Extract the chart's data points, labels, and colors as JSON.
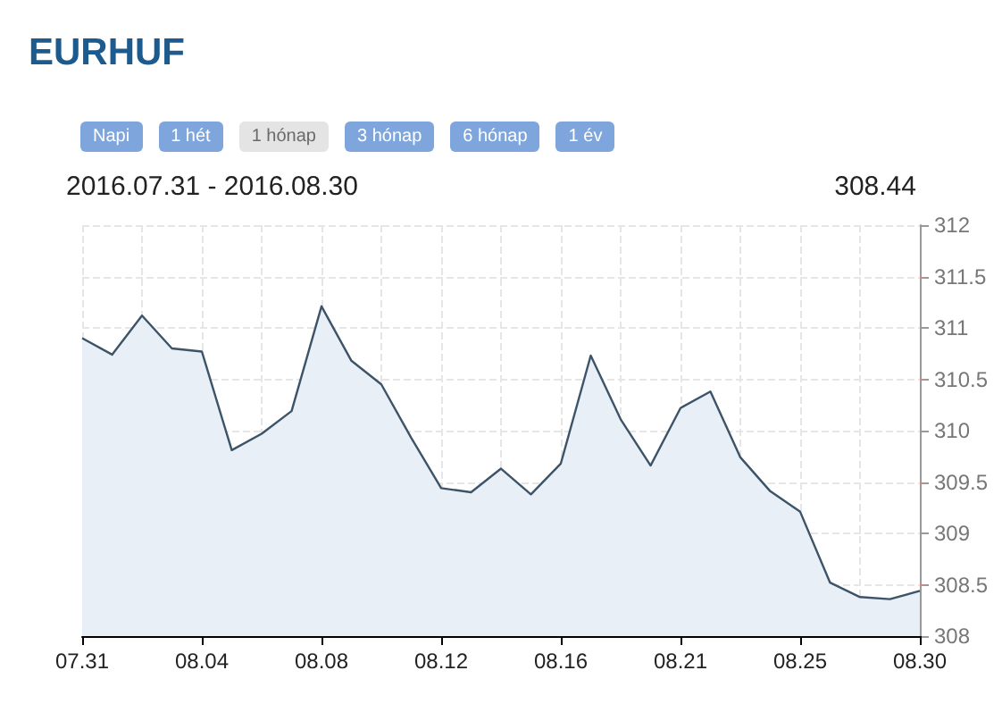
{
  "chart_data": {
    "type": "area",
    "title": "EURHUF",
    "subtitle": "2016.07.31 - 2016.08.30",
    "annotations": [
      "Napi",
      "1 hét",
      "1 hónap",
      "3 hónap",
      "6 hónap",
      "1 év",
      "308.44"
    ],
    "categories": [
      "07.31",
      null,
      null,
      null,
      "08.04",
      null,
      null,
      null,
      "08.08",
      null,
      null,
      null,
      "08.12",
      null,
      null,
      null,
      "08.16",
      null,
      null,
      null,
      "08.21",
      null,
      null,
      null,
      "08.25",
      null,
      null,
      null,
      "08.30"
    ],
    "series": [
      {
        "color": "#3d5468",
        "values": [
          310.9,
          310.74,
          311.12,
          310.8,
          310.77,
          309.81,
          309.97,
          310.19,
          311.21,
          310.68,
          310.45,
          309.93,
          309.44,
          309.4,
          309.63,
          309.38,
          309.68,
          310.73,
          310.11,
          309.66,
          310.22,
          310.38,
          309.74,
          309.41,
          309.21,
          308.52,
          308.38,
          308.36,
          308.44
        ]
      }
    ],
    "ylim": [
      308,
      312
    ],
    "yticks": [
      308,
      308.5,
      309,
      309.5,
      310,
      310.5,
      311,
      311.5,
      312
    ],
    "grid": true,
    "marker": "none",
    "line_style": "solid"
  }
}
